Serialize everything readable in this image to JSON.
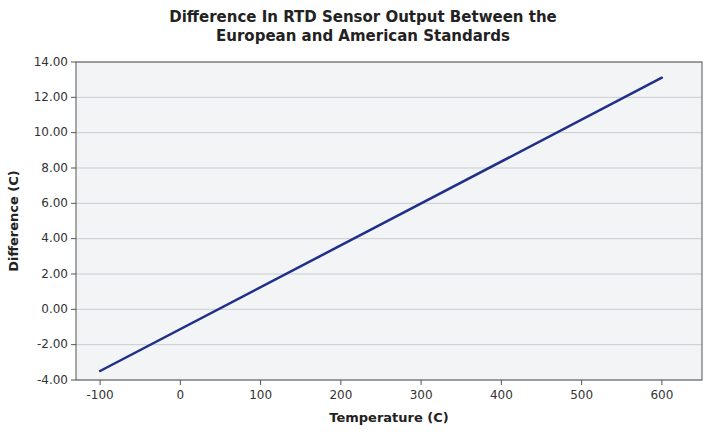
{
  "chart_data": {
    "type": "line",
    "title": "Difference In RTD Sensor Output Between the\nEuropean and American Standards",
    "xlabel": "Temperature (C)",
    "ylabel": "Difference (C)",
    "x": [
      -100,
      600
    ],
    "values": [
      -3.49,
      13.11
    ],
    "color": "#1F2F8A",
    "xlim": [
      -130,
      650
    ],
    "ylim": [
      -4.0,
      14.0
    ],
    "xticks": [
      -100,
      0,
      100,
      200,
      300,
      400,
      500,
      600
    ],
    "yticks": [
      {
        "value": -4.0,
        "label": "-4.00"
      },
      {
        "value": -2.0,
        "label": "-2.00"
      },
      {
        "value": 0.0,
        "label": "0.00"
      },
      {
        "value": 2.0,
        "label": "2.00"
      },
      {
        "value": 4.0,
        "label": "4.00"
      },
      {
        "value": 6.0,
        "label": "6.00"
      },
      {
        "value": 8.0,
        "label": "8.00"
      },
      {
        "value": 10.0,
        "label": "10.00"
      },
      {
        "value": 12.0,
        "label": "12.00"
      },
      {
        "value": 14.0,
        "label": "14.00"
      }
    ],
    "grid": true
  }
}
